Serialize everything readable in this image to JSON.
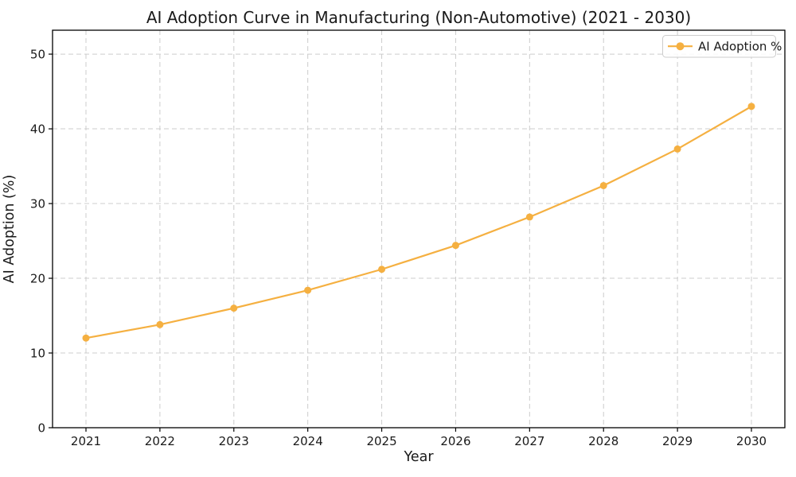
{
  "chart_data": {
    "type": "line",
    "title": "AI Adoption Curve in Manufacturing (Non-Automotive) (2021 - 2030)",
    "xlabel": "Year",
    "ylabel": "AI Adoption (%)",
    "categories": [
      "2021",
      "2022",
      "2023",
      "2024",
      "2025",
      "2026",
      "2027",
      "2028",
      "2029",
      "2030"
    ],
    "series": [
      {
        "name": "AI Adoption %",
        "values": [
          12.0,
          13.8,
          16.0,
          18.4,
          21.2,
          24.4,
          28.2,
          32.4,
          37.3,
          43.0
        ],
        "color": "#F5B041",
        "marker": "circle"
      }
    ],
    "yticks": [
      "0",
      "10",
      "20",
      "30",
      "40",
      "50"
    ],
    "ytick_values": [
      0,
      10,
      20,
      30,
      40,
      50
    ],
    "ylim": [
      0,
      53.2
    ],
    "grid": true,
    "grid_style": "dashed",
    "legend_position": "upper right"
  },
  "colors": {
    "line": "#F5B041",
    "grid": "#cccccc",
    "axis": "#000000",
    "text": "#1a1a1a",
    "legend_border": "#cccccc",
    "background": "#ffffff"
  }
}
